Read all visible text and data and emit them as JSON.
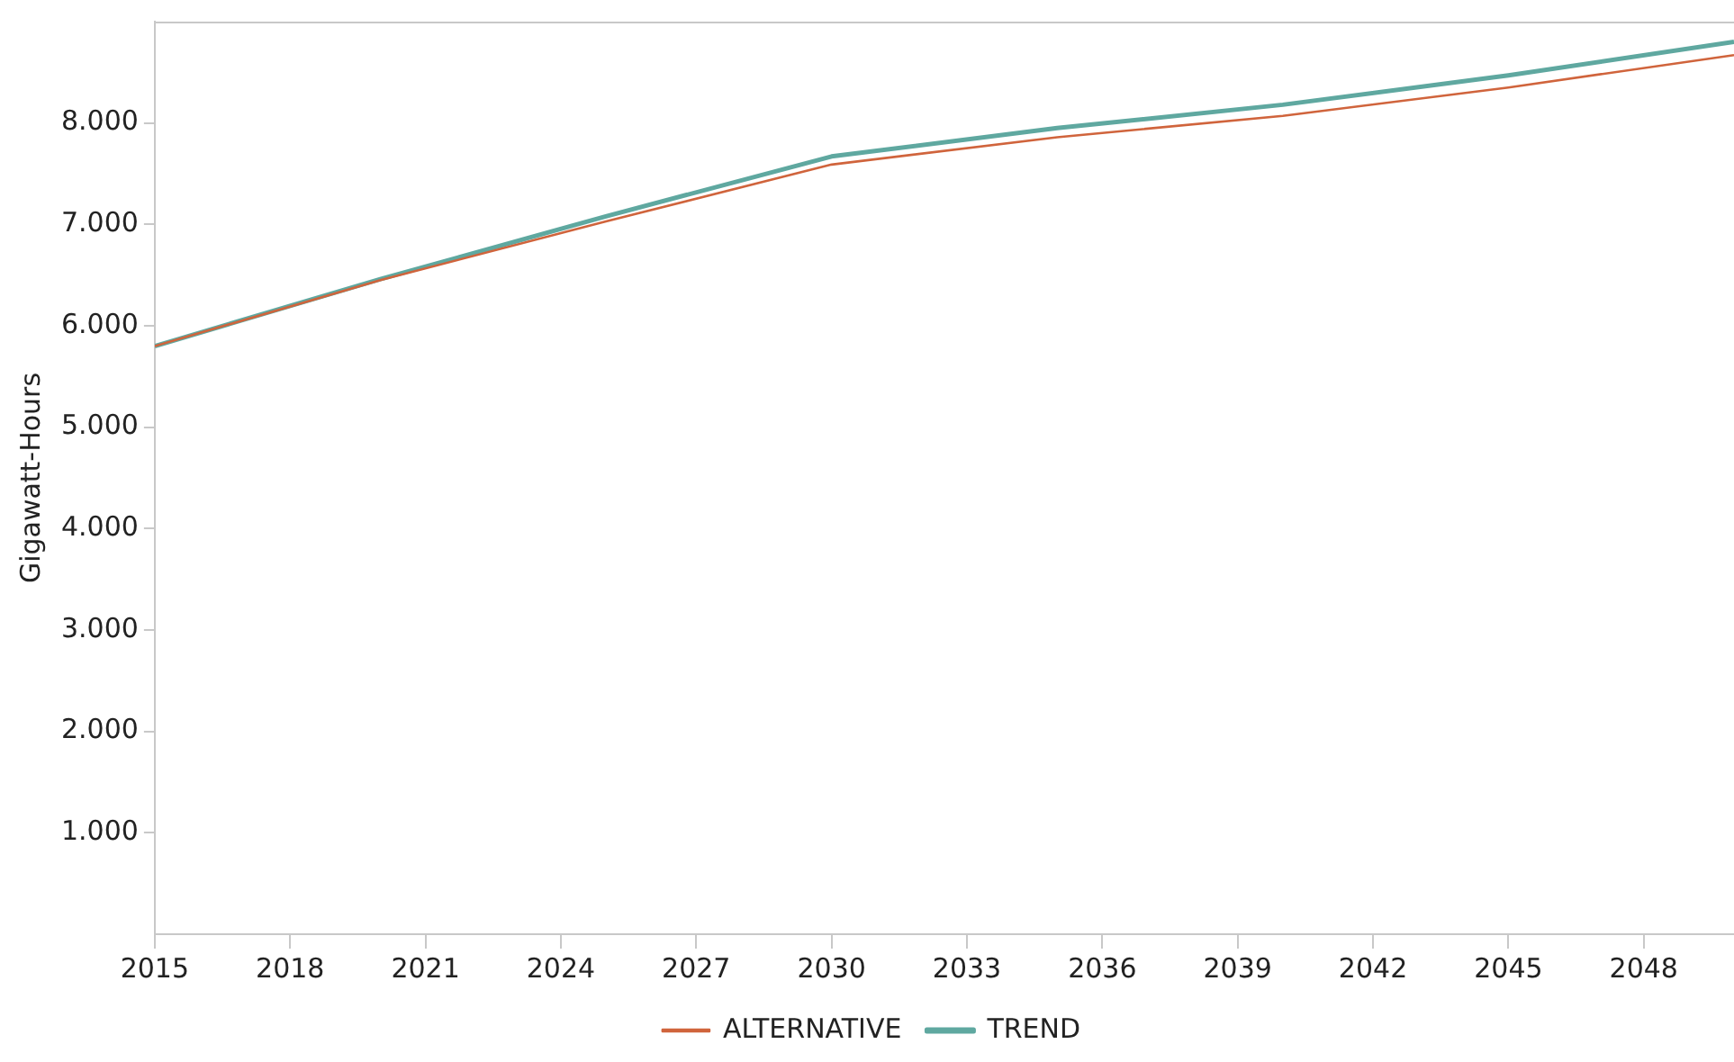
{
  "chart_data": {
    "type": "line",
    "ylabel": "Gigawatt-Hours",
    "x": [
      2015,
      2020,
      2025,
      2030,
      2035,
      2040,
      2045,
      2050
    ],
    "series": [
      {
        "name": "ALTERNATIVE",
        "color": "#d0643c",
        "values": [
          5800,
          6450,
          7030,
          7590,
          7860,
          8070,
          8350,
          8670
        ]
      },
      {
        "name": "TREND",
        "color": "#5fa8a0",
        "values": [
          5800,
          6460,
          7080,
          7670,
          7950,
          8180,
          8470,
          8800
        ]
      }
    ],
    "xlim": [
      2015,
      2050
    ],
    "xticks": [
      2015,
      2018,
      2021,
      2024,
      2027,
      2030,
      2033,
      2036,
      2039,
      2042,
      2045,
      2048
    ],
    "ylim": [
      0,
      9000
    ],
    "yticks": [
      {
        "value": 1000,
        "label": "1.000"
      },
      {
        "value": 2000,
        "label": "2.000"
      },
      {
        "value": 3000,
        "label": "3.000"
      },
      {
        "value": 4000,
        "label": "4.000"
      },
      {
        "value": 5000,
        "label": "5.000"
      },
      {
        "value": 6000,
        "label": "6.000"
      },
      {
        "value": 7000,
        "label": "7.000"
      },
      {
        "value": 8000,
        "label": "8.000"
      }
    ],
    "grid": false,
    "legend": "bottom",
    "marker": "none",
    "line_style": "solid"
  }
}
